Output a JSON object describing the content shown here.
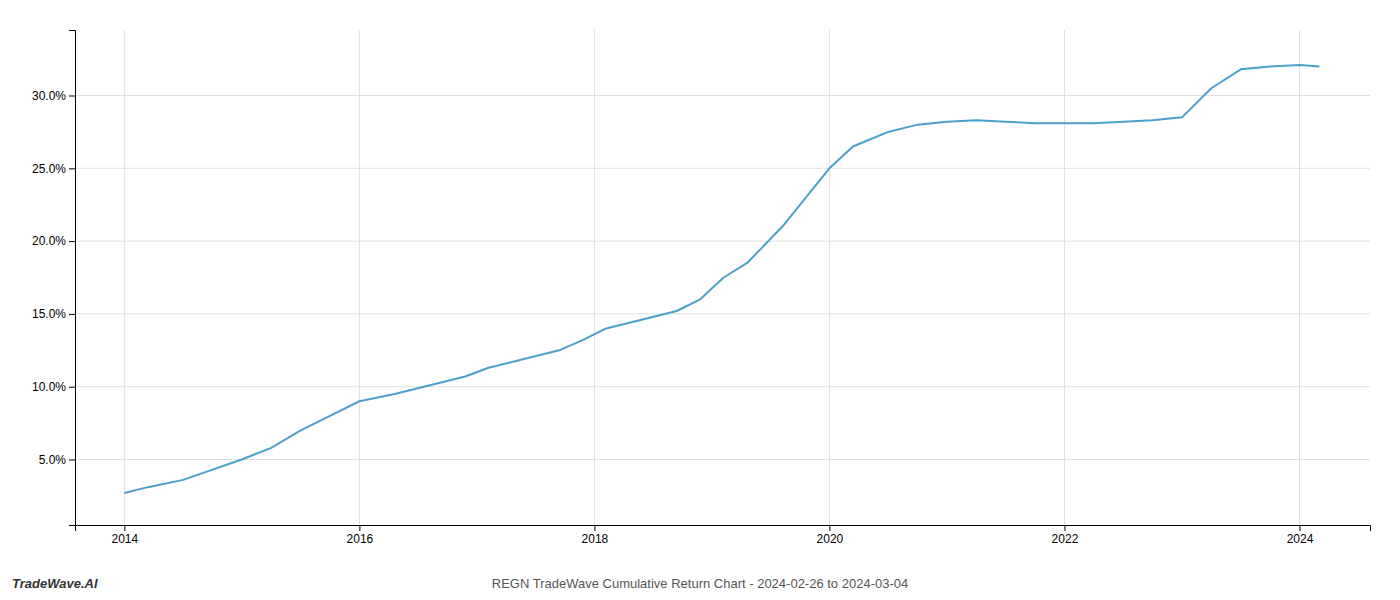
{
  "chart_data": {
    "type": "line",
    "title": "REGN TradeWave Cumulative Return Chart - 2024-02-26 to 2024-03-04",
    "annotations": [
      "TradeWave.AI"
    ],
    "x": [
      2014.0,
      2014.2,
      2014.5,
      2014.75,
      2015.0,
      2015.25,
      2015.5,
      2015.75,
      2016.0,
      2016.3,
      2016.6,
      2016.9,
      2017.1,
      2017.4,
      2017.7,
      2017.9,
      2018.1,
      2018.4,
      2018.7,
      2018.9,
      2019.1,
      2019.3,
      2019.6,
      2019.9,
      2020.0,
      2020.2,
      2020.5,
      2020.75,
      2021.0,
      2021.25,
      2021.5,
      2021.75,
      2022.0,
      2022.25,
      2022.5,
      2022.75,
      2023.0,
      2023.25,
      2023.5,
      2023.75,
      2024.0,
      2024.17
    ],
    "values": [
      2.7,
      3.1,
      3.6,
      4.3,
      5.0,
      5.8,
      7.0,
      8.0,
      9.0,
      9.5,
      10.1,
      10.7,
      11.3,
      11.9,
      12.5,
      13.2,
      14.0,
      14.6,
      15.2,
      16.0,
      17.5,
      18.5,
      21.0,
      24.0,
      25.0,
      26.5,
      27.5,
      28.0,
      28.2,
      28.3,
      28.2,
      28.1,
      28.1,
      28.1,
      28.2,
      28.3,
      28.5,
      30.5,
      31.8,
      32.0,
      32.1,
      32.0
    ],
    "color": "#4d9fca",
    "xlim": [
      2013.58,
      2024.6
    ],
    "ylim": [
      0.5,
      34.5
    ],
    "xticks": [
      2014,
      2016,
      2018,
      2020,
      2022,
      2024
    ],
    "yticks": [
      {
        "value": 5.0,
        "label": "5.0%"
      },
      {
        "value": 10.0,
        "label": "10.0%"
      },
      {
        "value": 15.0,
        "label": "15.0%"
      },
      {
        "value": 20.0,
        "label": "20.0%"
      },
      {
        "value": 25.0,
        "label": "25.0%"
      },
      {
        "value": 30.0,
        "label": "30.0%"
      }
    ],
    "grid": true
  }
}
